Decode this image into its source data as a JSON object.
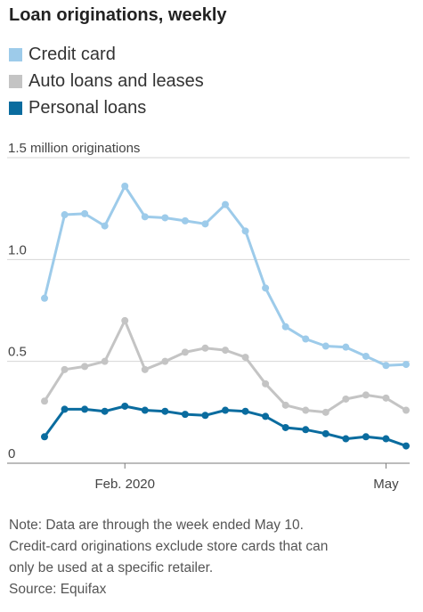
{
  "chart_data": {
    "type": "line",
    "title": "Loan originations, weekly",
    "ylabel": "1.5 million originations",
    "ylim": [
      0,
      1.5
    ],
    "y_ticks": [
      {
        "value": 0,
        "label": "0"
      },
      {
        "value": 0.5,
        "label": "0.5"
      },
      {
        "value": 1.0,
        "label": "1.0"
      },
      {
        "value": 1.5,
        "label": "1.5 million originations"
      }
    ],
    "x_ticks": [
      {
        "index": 4,
        "label": "Feb. 2020"
      },
      {
        "index": 17,
        "label": "May"
      }
    ],
    "grid": true,
    "legend_position": "top-left",
    "series": [
      {
        "name": "Credit card",
        "color": "#9dcbea",
        "values": [
          0.81,
          1.22,
          1.225,
          1.165,
          1.36,
          1.21,
          1.205,
          1.19,
          1.175,
          1.27,
          1.14,
          0.86,
          0.67,
          0.61,
          0.575,
          0.57,
          0.525,
          0.48,
          0.485
        ]
      },
      {
        "name": "Auto loans and leases",
        "color": "#c4c4c4",
        "values": [
          0.305,
          0.46,
          0.475,
          0.5,
          0.7,
          0.46,
          0.5,
          0.545,
          0.565,
          0.555,
          0.52,
          0.39,
          0.285,
          0.26,
          0.25,
          0.315,
          0.335,
          0.32,
          0.26
        ]
      },
      {
        "name": "Personal loans",
        "color": "#0a6c9f",
        "values": [
          0.13,
          0.265,
          0.265,
          0.255,
          0.28,
          0.26,
          0.255,
          0.24,
          0.235,
          0.26,
          0.255,
          0.23,
          0.175,
          0.165,
          0.145,
          0.12,
          0.13,
          0.12,
          0.085
        ]
      }
    ]
  },
  "notes": {
    "line1": "Note: Data are through the week ended May 10.",
    "line2": "Credit-card originations exclude store cards that can",
    "line3": "only be used at a specific retailer.",
    "source": "Source: Equifax"
  },
  "colors": {
    "gridline": "#d6d6d6",
    "baseline": "#7a7a7a"
  }
}
